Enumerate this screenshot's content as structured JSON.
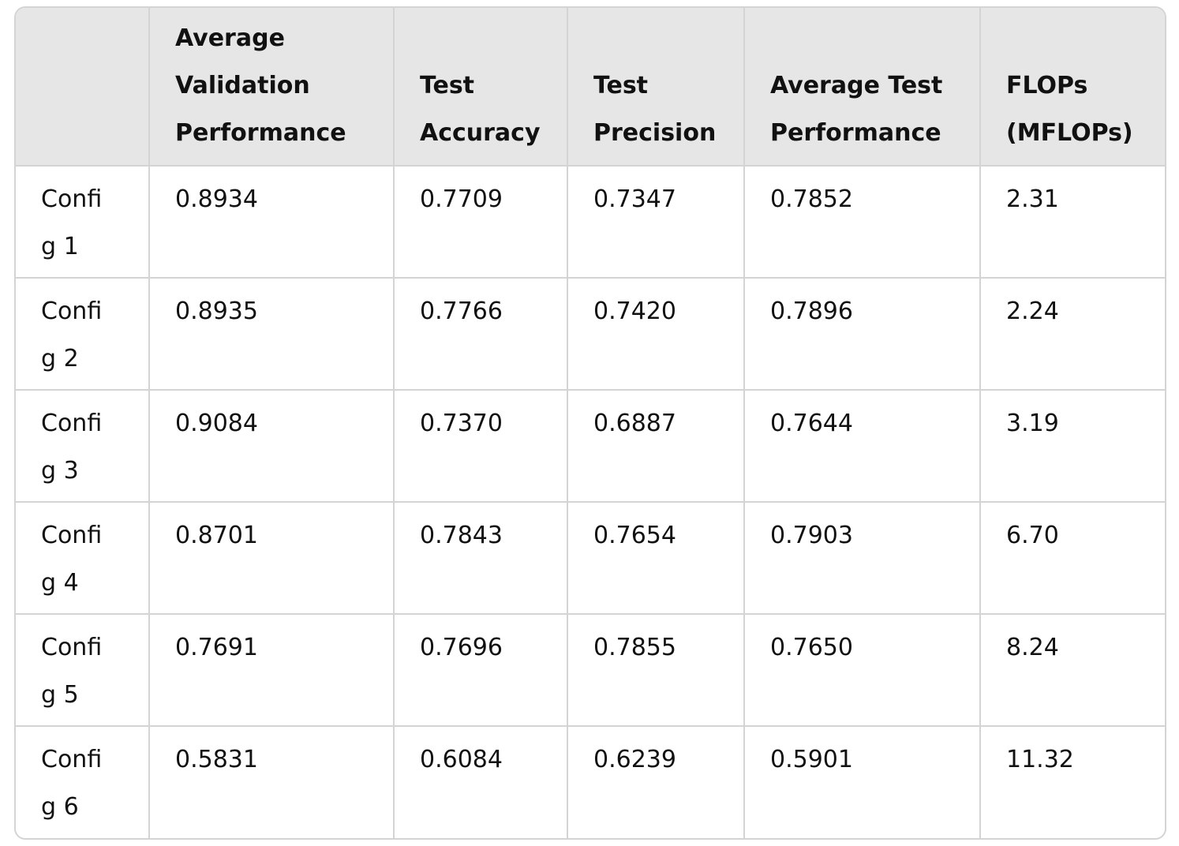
{
  "table": {
    "headers": [
      "",
      "Average Validation Performance",
      "Test Accuracy",
      "Test Precision",
      "Average Test Performance",
      "FLOPs (MFLOPs)"
    ],
    "rows": [
      [
        "Config 1",
        "0.8934",
        "0.7709",
        "0.7347",
        "0.7852",
        "2.31"
      ],
      [
        "Config 2",
        "0.8935",
        "0.7766",
        "0.7420",
        "0.7896",
        "2.24"
      ],
      [
        "Config 3",
        "0.9084",
        "0.7370",
        "0.6887",
        "0.7644",
        "3.19"
      ],
      [
        "Config 4",
        "0.8701",
        "0.7843",
        "0.7654",
        "0.7903",
        "6.70"
      ],
      [
        "Config 5",
        "0.7691",
        "0.7696",
        "0.7855",
        "0.7650",
        "8.24"
      ],
      [
        "Config 6",
        "0.5831",
        "0.6084",
        "0.6239",
        "0.5901",
        "11.32"
      ]
    ]
  }
}
